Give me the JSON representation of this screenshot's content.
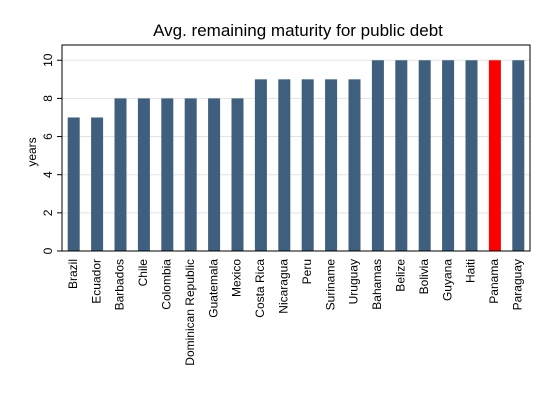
{
  "chart_data": {
    "type": "bar",
    "title": "Avg. remaining maturity for public debt",
    "y_label": "years",
    "categories": [
      "Brazil",
      "Ecuador",
      "Barbados",
      "Chile",
      "Colombia",
      "Dominican Republic",
      "Guatemala",
      "Mexico",
      "Costa Rica",
      "Nicaragua",
      "Peru",
      "Suriname",
      "Uruguay",
      "Bahamas",
      "Belize",
      "Bolivia",
      "Guyana",
      "Haiti",
      "Panama",
      "Paraguay"
    ],
    "values": [
      7,
      7,
      8,
      8,
      8,
      8,
      8,
      8,
      9,
      9,
      9,
      9,
      9,
      10,
      10,
      10,
      10,
      10,
      10,
      10
    ],
    "colors": [
      "#3e5f7d",
      "#3e5f7d",
      "#3e5f7d",
      "#3e5f7d",
      "#3e5f7d",
      "#3e5f7d",
      "#3e5f7d",
      "#3e5f7d",
      "#3e5f7d",
      "#3e5f7d",
      "#3e5f7d",
      "#3e5f7d",
      "#3e5f7d",
      "#3e5f7d",
      "#3e5f7d",
      "#3e5f7d",
      "#3e5f7d",
      "#3e5f7d",
      "#ff0000",
      "#3e5f7d"
    ],
    "ylim": [
      0,
      10.8
    ],
    "yticks": [
      0,
      2,
      4,
      6,
      8,
      10
    ],
    "grid": true
  }
}
